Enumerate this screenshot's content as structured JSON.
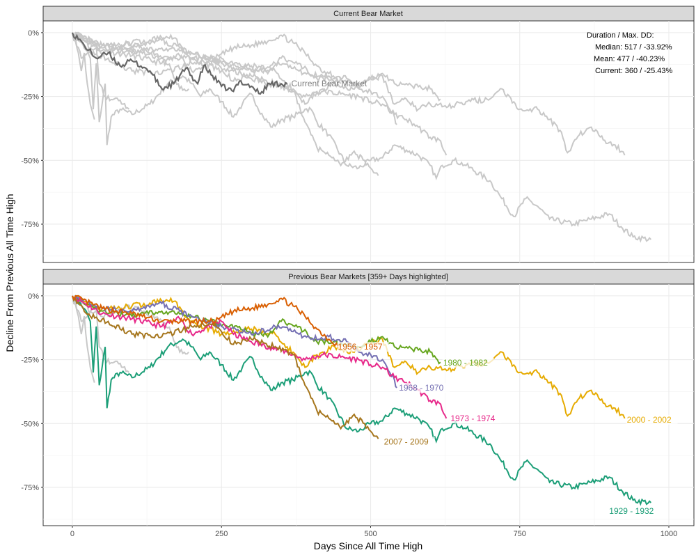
{
  "chart_data": [
    {
      "type": "line",
      "panel_title": "Current Bear Market",
      "xlabel": "Days Since All Time High",
      "ylabel": "Decline From Previous All Time High",
      "xlim": [
        -49,
        1042
      ],
      "ylim": [
        -90,
        4.6
      ],
      "x_ticks": [
        "0",
        "250",
        "500",
        "750",
        "1000"
      ],
      "y_ticks": [
        "0%",
        "-25%",
        "-50%",
        "-75%"
      ],
      "grid": true,
      "current_label": "Current Bear Market",
      "current_color": "#666666",
      "others_color": "#c8c8c8",
      "annotation": {
        "title": "Duration / Max. DD:",
        "median": "Median: 517 / -33.92%",
        "mean": "Mean: 477 / -40.23%",
        "current": "Current: 360 / -25.43%"
      },
      "current_series": [
        [
          0,
          0
        ],
        [
          20,
          -5
        ],
        [
          40,
          -10
        ],
        [
          60,
          -8
        ],
        [
          80,
          -13
        ],
        [
          100,
          -11
        ],
        [
          130,
          -15
        ],
        [
          150,
          -22
        ],
        [
          170,
          -20
        ],
        [
          190,
          -14
        ],
        [
          210,
          -20
        ],
        [
          220,
          -13
        ],
        [
          250,
          -21
        ],
        [
          270,
          -23
        ],
        [
          280,
          -19
        ],
        [
          300,
          -21
        ],
        [
          315,
          -24
        ],
        [
          330,
          -20
        ],
        [
          350,
          -20
        ],
        [
          360,
          -20
        ]
      ]
    },
    {
      "type": "line",
      "panel_title": "Previous Bear Markets [359+ Days highlighted]",
      "xlim": [
        -49,
        1042
      ],
      "ylim": [
        -90,
        4.6
      ],
      "x_ticks": [
        "0",
        "250",
        "500",
        "750",
        "1000"
      ],
      "y_ticks": [
        "0%",
        "-25%",
        "-50%",
        "-75%"
      ],
      "grid": true,
      "series": [
        {
          "name": "1929 - 1932",
          "color": "#1b9e77",
          "points": [
            [
              0,
              0
            ],
            [
              20,
              -5
            ],
            [
              30,
              -10
            ],
            [
              35,
              -30
            ],
            [
              40,
              -12
            ],
            [
              45,
              -35
            ],
            [
              55,
              -20
            ],
            [
              58,
              -44
            ],
            [
              65,
              -33
            ],
            [
              80,
              -30
            ],
            [
              100,
              -32
            ],
            [
              130,
              -28
            ],
            [
              160,
              -20
            ],
            [
              185,
              -17
            ],
            [
              200,
              -20
            ],
            [
              215,
              -25
            ],
            [
              230,
              -22
            ],
            [
              250,
              -27
            ],
            [
              270,
              -33
            ],
            [
              285,
              -28
            ],
            [
              300,
              -24
            ],
            [
              320,
              -33
            ],
            [
              335,
              -37
            ],
            [
              350,
              -34
            ],
            [
              370,
              -33
            ],
            [
              390,
              -30
            ],
            [
              400,
              -30
            ],
            [
              410,
              -35
            ],
            [
              430,
              -40
            ],
            [
              460,
              -52
            ],
            [
              480,
              -53
            ],
            [
              500,
              -50
            ],
            [
              520,
              -49
            ],
            [
              540,
              -44
            ],
            [
              560,
              -46
            ],
            [
              580,
              -48
            ],
            [
              600,
              -52
            ],
            [
              610,
              -57
            ],
            [
              620,
              -52
            ],
            [
              640,
              -50
            ],
            [
              660,
              -52
            ],
            [
              700,
              -58
            ],
            [
              720,
              -65
            ],
            [
              740,
              -72
            ],
            [
              760,
              -65
            ],
            [
              780,
              -68
            ],
            [
              800,
              -73
            ],
            [
              840,
              -75
            ],
            [
              870,
              -73
            ],
            [
              900,
              -71
            ],
            [
              920,
              -76
            ],
            [
              940,
              -80
            ],
            [
              970,
              -81
            ]
          ]
        },
        {
          "name": "2000 - 2002",
          "color": "#e6ab02",
          "points": [
            [
              0,
              0
            ],
            [
              50,
              -5
            ],
            [
              100,
              -4
            ],
            [
              150,
              -2
            ],
            [
              165,
              -1
            ],
            [
              200,
              -10
            ],
            [
              250,
              -15
            ],
            [
              300,
              -13
            ],
            [
              340,
              -15
            ],
            [
              360,
              -20
            ],
            [
              380,
              -25
            ],
            [
              390,
              -28
            ],
            [
              400,
              -25
            ],
            [
              420,
              -22
            ],
            [
              440,
              -20
            ],
            [
              470,
              -22
            ],
            [
              500,
              -18
            ],
            [
              520,
              -17
            ],
            [
              540,
              -28
            ],
            [
              560,
              -26
            ],
            [
              580,
              -30
            ],
            [
              600,
              -28
            ],
            [
              630,
              -29
            ],
            [
              660,
              -27
            ],
            [
              700,
              -26
            ],
            [
              720,
              -22
            ],
            [
              750,
              -30
            ],
            [
              780,
              -30
            ],
            [
              800,
              -34
            ],
            [
              820,
              -39
            ],
            [
              830,
              -47
            ],
            [
              850,
              -40
            ],
            [
              870,
              -37
            ],
            [
              890,
              -42
            ],
            [
              910,
              -44
            ],
            [
              926,
              -48
            ]
          ]
        },
        {
          "name": "1980 - 1982",
          "color": "#66a61e",
          "points": [
            [
              0,
              0
            ],
            [
              50,
              -6
            ],
            [
              100,
              -8
            ],
            [
              150,
              -6
            ],
            [
              200,
              -8
            ],
            [
              230,
              -10
            ],
            [
              260,
              -12
            ],
            [
              280,
              -12
            ],
            [
              300,
              -15
            ],
            [
              330,
              -15
            ],
            [
              350,
              -10
            ],
            [
              380,
              -12
            ],
            [
              410,
              -18
            ],
            [
              440,
              -18
            ],
            [
              470,
              -20
            ],
            [
              500,
              -18
            ],
            [
              520,
              -16
            ],
            [
              540,
              -20
            ],
            [
              570,
              -21
            ],
            [
              600,
              -22
            ],
            [
              617,
              -26
            ]
          ]
        },
        {
          "name": "1968 - 1970",
          "color": "#7570b3",
          "points": [
            [
              0,
              0
            ],
            [
              50,
              -5
            ],
            [
              100,
              -6
            ],
            [
              150,
              -3
            ],
            [
              200,
              -8
            ],
            [
              250,
              -12
            ],
            [
              300,
              -15
            ],
            [
              340,
              -12
            ],
            [
              370,
              -14
            ],
            [
              400,
              -17
            ],
            [
              430,
              -16
            ],
            [
              460,
              -18
            ],
            [
              480,
              -22
            ],
            [
              500,
              -23
            ],
            [
              520,
              -25
            ],
            [
              540,
              -33
            ],
            [
              544,
              -36
            ]
          ]
        },
        {
          "name": "1973 - 1974",
          "color": "#e7298a",
          "points": [
            [
              0,
              0
            ],
            [
              50,
              -7
            ],
            [
              100,
              -9
            ],
            [
              150,
              -12
            ],
            [
              180,
              -9
            ],
            [
              200,
              -15
            ],
            [
              230,
              -12
            ],
            [
              250,
              -10
            ],
            [
              270,
              -15
            ],
            [
              300,
              -18
            ],
            [
              330,
              -20
            ],
            [
              360,
              -22
            ],
            [
              390,
              -25
            ],
            [
              420,
              -23
            ],
            [
              450,
              -24
            ],
            [
              480,
              -25
            ],
            [
              500,
              -27
            ],
            [
              520,
              -28
            ],
            [
              540,
              -32
            ],
            [
              560,
              -34
            ],
            [
              580,
              -37
            ],
            [
              600,
              -41
            ],
            [
              615,
              -42
            ],
            [
              627,
              -48
            ]
          ]
        },
        {
          "name": "2007 - 2009",
          "color": "#a6761d",
          "points": [
            [
              0,
              0
            ],
            [
              30,
              -8
            ],
            [
              60,
              -10
            ],
            [
              80,
              -13
            ],
            [
              100,
              -15
            ],
            [
              150,
              -16
            ],
            [
              200,
              -12
            ],
            [
              230,
              -11
            ],
            [
              250,
              -14
            ],
            [
              270,
              -19
            ],
            [
              300,
              -17
            ],
            [
              340,
              -20
            ],
            [
              370,
              -23
            ],
            [
              380,
              -28
            ],
            [
              390,
              -35
            ],
            [
              400,
              -40
            ],
            [
              410,
              -45
            ],
            [
              430,
              -48
            ],
            [
              450,
              -52
            ],
            [
              470,
              -47
            ],
            [
              490,
              -50
            ],
            [
              500,
              -53
            ],
            [
              513,
              -56
            ]
          ]
        },
        {
          "name": "1956 - 1957",
          "color": "#d95f02",
          "points": [
            [
              0,
              0
            ],
            [
              50,
              -5
            ],
            [
              100,
              -7
            ],
            [
              150,
              -10
            ],
            [
              200,
              -10
            ],
            [
              240,
              -10
            ],
            [
              270,
              -6
            ],
            [
              300,
              -5
            ],
            [
              330,
              -3
            ],
            [
              350,
              -1
            ],
            [
              370,
              -4
            ],
            [
              390,
              -8
            ],
            [
              410,
              -13
            ],
            [
              430,
              -17
            ],
            [
              450,
              -20
            ]
          ]
        },
        {
          "color": "#c8c8c8",
          "points": [
            [
              0,
              0
            ],
            [
              10,
              -8
            ],
            [
              15,
              -15
            ],
            [
              20,
              -8
            ],
            [
              25,
              -20
            ],
            [
              30,
              -28
            ],
            [
              37,
              -34
            ]
          ]
        },
        {
          "color": "#c8c8c8",
          "points": [
            [
              0,
              0
            ],
            [
              15,
              -10
            ],
            [
              30,
              -6
            ],
            [
              40,
              -5
            ],
            [
              45,
              -20
            ],
            [
              55,
              -25
            ],
            [
              70,
              -26
            ],
            [
              85,
              -28
            ],
            [
              95,
              -30
            ]
          ]
        },
        {
          "color": "#c8c8c8",
          "points": [
            [
              0,
              0
            ],
            [
              30,
              -6
            ],
            [
              60,
              -8
            ],
            [
              90,
              -4
            ],
            [
              120,
              -6
            ],
            [
              150,
              -10
            ],
            [
              165,
              -14
            ],
            [
              180,
              -22
            ],
            [
              195,
              -22
            ]
          ]
        }
      ]
    }
  ]
}
